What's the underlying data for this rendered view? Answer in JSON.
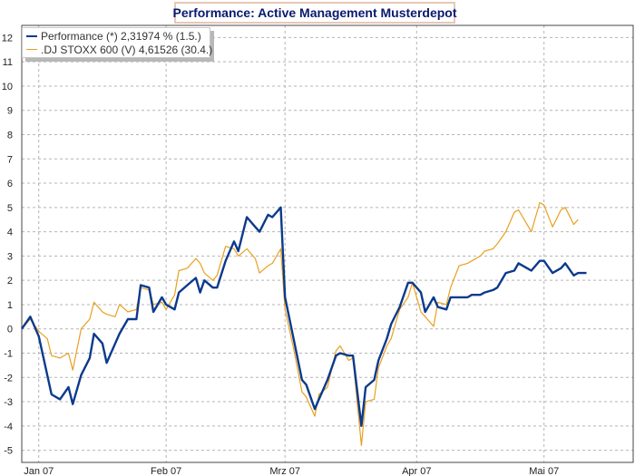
{
  "colors": {
    "performance": "#0b3a8c",
    "stoxx": "#e8a020",
    "grid": "#b4b4b4",
    "axis_text": "#222222",
    "title": "#0a1a6e"
  },
  "chart_data": {
    "type": "line",
    "title": "Performance: Active Management Musterdepot",
    "xlabel": "",
    "ylabel": "",
    "ylim": [
      -5.5,
      12.5
    ],
    "y_ticks": [
      12,
      11,
      10,
      9,
      8,
      7,
      6,
      5,
      4,
      3,
      2,
      1,
      0,
      -1,
      -2,
      -3,
      -4,
      -5
    ],
    "x_ticks": [
      {
        "label": "Jan 07",
        "t": 1
      },
      {
        "label": "Feb 07",
        "t": 31
      },
      {
        "label": "Mrz 07",
        "t": 59
      },
      {
        "label": "Apr 07",
        "t": 90
      },
      {
        "label": "Mai 07",
        "t": 120
      }
    ],
    "x_range": [
      -3,
      141
    ],
    "grid": true,
    "legend_position": "top-left",
    "series": [
      {
        "name": "Performance (*) 2,31974 % (1.5.)",
        "color_key": "performance",
        "points": [
          [
            -3,
            0.0
          ],
          [
            -1,
            0.5
          ],
          [
            1,
            -0.3
          ],
          [
            3,
            -1.9
          ],
          [
            4,
            -2.7
          ],
          [
            6,
            -2.9
          ],
          [
            8,
            -2.4
          ],
          [
            9,
            -3.1
          ],
          [
            11,
            -1.9
          ],
          [
            13,
            -1.2
          ],
          [
            14,
            -0.2
          ],
          [
            16,
            -0.6
          ],
          [
            17,
            -1.4
          ],
          [
            19,
            -0.6
          ],
          [
            20,
            -0.2
          ],
          [
            22,
            0.4
          ],
          [
            24,
            0.4
          ],
          [
            25,
            1.8
          ],
          [
            27,
            1.7
          ],
          [
            28,
            0.7
          ],
          [
            30,
            1.3
          ],
          [
            31,
            1.0
          ],
          [
            33,
            0.8
          ],
          [
            34,
            1.5
          ],
          [
            36,
            1.8
          ],
          [
            38,
            2.1
          ],
          [
            39,
            1.5
          ],
          [
            40,
            2.0
          ],
          [
            42,
            1.7
          ],
          [
            43,
            1.7
          ],
          [
            45,
            2.8
          ],
          [
            47,
            3.6
          ],
          [
            48,
            3.2
          ],
          [
            50,
            4.6
          ],
          [
            52,
            4.2
          ],
          [
            53,
            4.0
          ],
          [
            55,
            4.7
          ],
          [
            56,
            4.6
          ],
          [
            58,
            5.0
          ],
          [
            59,
            1.3
          ],
          [
            61,
            -0.4
          ],
          [
            63,
            -2.1
          ],
          [
            64,
            -2.3
          ],
          [
            66,
            -3.3
          ],
          [
            67,
            -2.9
          ],
          [
            69,
            -2.1
          ],
          [
            71,
            -1.1
          ],
          [
            72,
            -1.0
          ],
          [
            74,
            -1.1
          ],
          [
            75,
            -1.1
          ],
          [
            77,
            -4.0
          ],
          [
            78,
            -2.4
          ],
          [
            80,
            -2.1
          ],
          [
            81,
            -1.3
          ],
          [
            83,
            -0.4
          ],
          [
            84,
            0.2
          ],
          [
            86,
            0.9
          ],
          [
            88,
            1.9
          ],
          [
            89,
            1.9
          ],
          [
            91,
            1.5
          ],
          [
            92,
            0.7
          ],
          [
            94,
            1.3
          ],
          [
            95,
            0.9
          ],
          [
            97,
            0.8
          ],
          [
            98,
            1.3
          ],
          [
            100,
            1.3
          ],
          [
            102,
            1.3
          ],
          [
            103,
            1.4
          ],
          [
            105,
            1.4
          ],
          [
            106,
            1.5
          ],
          [
            108,
            1.6
          ],
          [
            109,
            1.7
          ],
          [
            111,
            2.3
          ],
          [
            113,
            2.4
          ],
          [
            114,
            2.7
          ],
          [
            116,
            2.5
          ],
          [
            117,
            2.4
          ],
          [
            119,
            2.8
          ],
          [
            120,
            2.8
          ],
          [
            122,
            2.3
          ],
          [
            124,
            2.5
          ],
          [
            125,
            2.7
          ],
          [
            127,
            2.2
          ],
          [
            128,
            2.3
          ],
          [
            130,
            2.3
          ]
        ]
      },
      {
        "name": ".DJ STOXX 600 (V) 4,61526 (30.4.)",
        "color_key": "stoxx",
        "points": [
          [
            -3,
            0.0
          ],
          [
            -1,
            0.4
          ],
          [
            1,
            -0.1
          ],
          [
            3,
            -0.4
          ],
          [
            4,
            -1.1
          ],
          [
            6,
            -1.2
          ],
          [
            8,
            -1.0
          ],
          [
            9,
            -1.7
          ],
          [
            11,
            0.0
          ],
          [
            13,
            0.4
          ],
          [
            14,
            1.1
          ],
          [
            16,
            0.7
          ],
          [
            17,
            0.6
          ],
          [
            19,
            0.5
          ],
          [
            20,
            1.0
          ],
          [
            22,
            0.7
          ],
          [
            24,
            0.8
          ],
          [
            25,
            1.7
          ],
          [
            27,
            1.6
          ],
          [
            28,
            1.0
          ],
          [
            30,
            1.1
          ],
          [
            31,
            0.8
          ],
          [
            33,
            1.4
          ],
          [
            34,
            2.4
          ],
          [
            36,
            2.5
          ],
          [
            38,
            2.9
          ],
          [
            39,
            2.7
          ],
          [
            40,
            2.3
          ],
          [
            42,
            2.0
          ],
          [
            43,
            2.2
          ],
          [
            45,
            3.4
          ],
          [
            47,
            3.3
          ],
          [
            48,
            3.0
          ],
          [
            50,
            3.3
          ],
          [
            52,
            2.9
          ],
          [
            53,
            2.3
          ],
          [
            55,
            2.6
          ],
          [
            56,
            2.7
          ],
          [
            58,
            3.3
          ],
          [
            59,
            0.8
          ],
          [
            61,
            -0.8
          ],
          [
            63,
            -2.6
          ],
          [
            64,
            -2.8
          ],
          [
            66,
            -3.6
          ],
          [
            67,
            -2.7
          ],
          [
            69,
            -2.4
          ],
          [
            71,
            -0.9
          ],
          [
            72,
            -0.7
          ],
          [
            74,
            -1.3
          ],
          [
            75,
            -1.2
          ],
          [
            77,
            -4.8
          ],
          [
            78,
            -3.0
          ],
          [
            80,
            -2.9
          ],
          [
            81,
            -1.6
          ],
          [
            83,
            -0.7
          ],
          [
            84,
            -0.4
          ],
          [
            86,
            0.8
          ],
          [
            88,
            1.3
          ],
          [
            89,
            1.9
          ],
          [
            91,
            0.7
          ],
          [
            92,
            0.5
          ],
          [
            94,
            0.1
          ],
          [
            95,
            1.1
          ],
          [
            97,
            1.0
          ],
          [
            98,
            1.7
          ],
          [
            100,
            2.6
          ],
          [
            102,
            2.7
          ],
          [
            103,
            2.8
          ],
          [
            105,
            3.0
          ],
          [
            106,
            3.2
          ],
          [
            108,
            3.3
          ],
          [
            109,
            3.5
          ],
          [
            111,
            4.0
          ],
          [
            113,
            4.8
          ],
          [
            114,
            4.9
          ],
          [
            116,
            4.3
          ],
          [
            117,
            4.0
          ],
          [
            119,
            5.2
          ],
          [
            120,
            5.1
          ],
          [
            122,
            4.2
          ],
          [
            124,
            4.9
          ],
          [
            125,
            5.0
          ],
          [
            127,
            4.3
          ],
          [
            128,
            4.5
          ]
        ]
      }
    ]
  }
}
